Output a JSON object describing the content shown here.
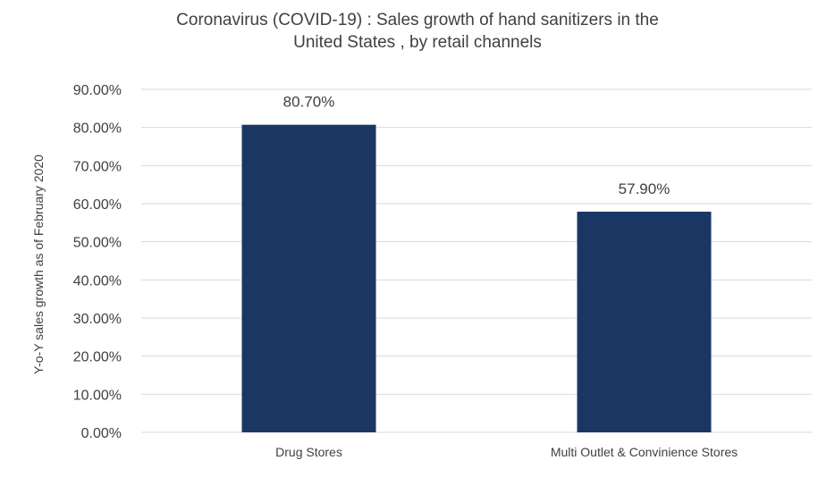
{
  "chart_data": {
    "type": "bar",
    "title_lines": [
      "Coronavirus (COVID-19) : Sales growth of hand sanitizers in the",
      "United States , by retail channels"
    ],
    "xlabel": "",
    "ylabel": "Y-o-Y sales growth as of February 2020",
    "categories": [
      "Drug Stores",
      "Multi Outlet & Convinience Stores"
    ],
    "values": [
      80.7,
      57.9
    ],
    "data_labels": [
      "80.70%",
      "57.90%"
    ],
    "ylim": [
      0,
      90
    ],
    "yticks": [
      0,
      10,
      20,
      30,
      40,
      50,
      60,
      70,
      80,
      90
    ],
    "ytick_labels": [
      "0.00%",
      "10.00%",
      "20.00%",
      "30.00%",
      "40.00%",
      "50.00%",
      "60.00%",
      "70.00%",
      "80.00%",
      "90.00%"
    ],
    "grid": true,
    "bar_color": "#1a3764",
    "grid_color": "#d9d9d9",
    "text_color": "#404040"
  }
}
